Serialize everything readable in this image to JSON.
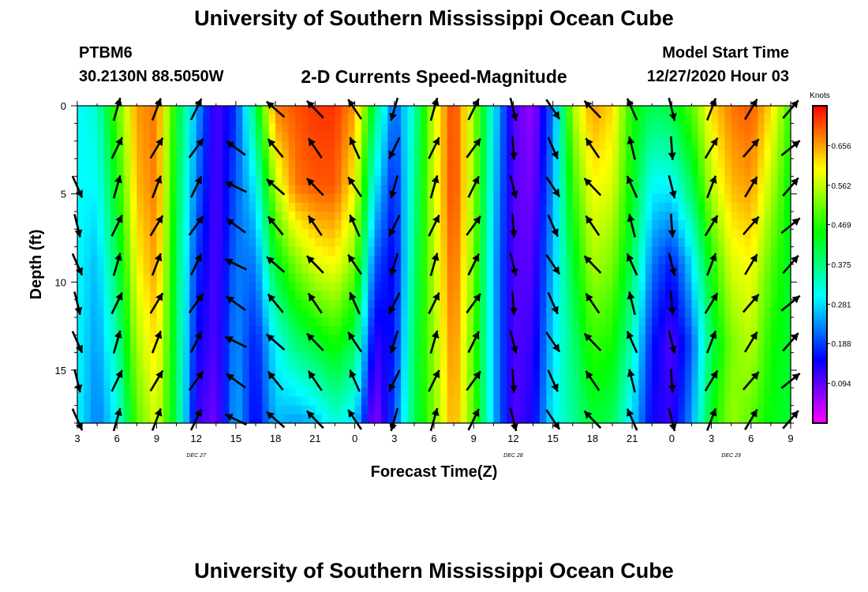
{
  "header": {
    "main_title": "University of Southern Mississippi Ocean Cube",
    "station_id": "PTBM6",
    "station_coords": "30.2130N 88.5050W",
    "chart_title": "2-D Currents Speed-Magnitude",
    "model_start_label": "Model Start Time",
    "model_start_value": "12/27/2020 Hour 03"
  },
  "footer": {
    "title": "University of Southern Mississippi Ocean Cube"
  },
  "chart_data": {
    "type": "heatmap",
    "title": "2-D Currents Speed-Magnitude",
    "xlabel": "Forecast Time(Z)",
    "ylabel": "Depth (ft)",
    "x_tick_labels": [
      "3",
      "6",
      "9",
      "12",
      "15",
      "18",
      "21",
      "0",
      "3",
      "6",
      "9",
      "12",
      "15",
      "18",
      "21",
      "0",
      "3",
      "6",
      "9"
    ],
    "x_range_hours": [
      0,
      54
    ],
    "y_ticks": [
      0,
      5,
      10,
      15
    ],
    "y_range_ft": [
      0,
      18
    ],
    "date_labels": [
      {
        "text": "DEC 27",
        "hour": 9
      },
      {
        "text": "DEC 28",
        "hour": 33
      },
      {
        "text": "DEC 29",
        "hour": 49.5
      }
    ],
    "colorbar": {
      "unit": "Knots",
      "ticks": [
        "0.656",
        "0.562",
        "0.469",
        "0.375",
        "0.281",
        "0.188",
        "0.094"
      ],
      "tick_values": [
        0.656,
        0.562,
        0.469,
        0.375,
        0.281,
        0.188,
        0.094
      ],
      "range": [
        0.0,
        0.75
      ]
    },
    "speed_profiles_by_hour": [
      {
        "hour": 0,
        "speeds": [
          0.3,
          0.3,
          0.3,
          0.3,
          0.3
        ]
      },
      {
        "hour": 1.5,
        "speeds": [
          0.33,
          0.3,
          0.26,
          0.24,
          0.22
        ]
      },
      {
        "hour": 3,
        "speeds": [
          0.5,
          0.45,
          0.4,
          0.35,
          0.3
        ]
      },
      {
        "hour": 4.5,
        "speeds": [
          0.66,
          0.64,
          0.6,
          0.55,
          0.5
        ]
      },
      {
        "hour": 6,
        "speeds": [
          0.68,
          0.68,
          0.66,
          0.62,
          0.58
        ]
      },
      {
        "hour": 7.5,
        "speeds": [
          0.44,
          0.42,
          0.4,
          0.4,
          0.4
        ]
      },
      {
        "hour": 9,
        "speeds": [
          0.25,
          0.22,
          0.18,
          0.15,
          0.12
        ]
      },
      {
        "hour": 10.5,
        "speeds": [
          0.1,
          0.1,
          0.1,
          0.1,
          0.08
        ]
      },
      {
        "hour": 12,
        "speeds": [
          0.18,
          0.2,
          0.22,
          0.24,
          0.26
        ]
      },
      {
        "hour": 13.5,
        "speeds": [
          0.4,
          0.3,
          0.22,
          0.16,
          0.14
        ]
      },
      {
        "hour": 15,
        "speeds": [
          0.68,
          0.56,
          0.43,
          0.3,
          0.26
        ]
      },
      {
        "hour": 16.5,
        "speeds": [
          0.7,
          0.68,
          0.52,
          0.38,
          0.24
        ]
      },
      {
        "hour": 18,
        "speeds": [
          0.72,
          0.7,
          0.58,
          0.42,
          0.26
        ]
      },
      {
        "hour": 19.5,
        "speeds": [
          0.72,
          0.7,
          0.6,
          0.46,
          0.32
        ]
      },
      {
        "hour": 21,
        "speeds": [
          0.66,
          0.6,
          0.52,
          0.4,
          0.28
        ]
      },
      {
        "hour": 22.5,
        "speeds": [
          0.4,
          0.3,
          0.2,
          0.12,
          0.06
        ]
      },
      {
        "hour": 24,
        "speeds": [
          0.2,
          0.16,
          0.14,
          0.16,
          0.2
        ]
      },
      {
        "hour": 25.5,
        "speeds": [
          0.34,
          0.36,
          0.38,
          0.4,
          0.4
        ]
      },
      {
        "hour": 27,
        "speeds": [
          0.58,
          0.58,
          0.56,
          0.54,
          0.52
        ]
      },
      {
        "hour": 28.5,
        "speeds": [
          0.72,
          0.72,
          0.7,
          0.68,
          0.66
        ]
      },
      {
        "hour": 30,
        "speeds": [
          0.54,
          0.54,
          0.52,
          0.5,
          0.5
        ]
      },
      {
        "hour": 31.5,
        "speeds": [
          0.3,
          0.28,
          0.26,
          0.26,
          0.26
        ]
      },
      {
        "hour": 33,
        "speeds": [
          0.1,
          0.1,
          0.1,
          0.1,
          0.1
        ]
      },
      {
        "hour": 34.5,
        "speeds": [
          0.06,
          0.08,
          0.1,
          0.12,
          0.14
        ]
      },
      {
        "hour": 36,
        "speeds": [
          0.22,
          0.24,
          0.26,
          0.28,
          0.3
        ]
      },
      {
        "hour": 37.5,
        "speeds": [
          0.55,
          0.48,
          0.42,
          0.38,
          0.36
        ]
      },
      {
        "hour": 39,
        "speeds": [
          0.66,
          0.6,
          0.55,
          0.48,
          0.42
        ]
      },
      {
        "hour": 40.5,
        "speeds": [
          0.62,
          0.58,
          0.52,
          0.46,
          0.4
        ]
      },
      {
        "hour": 42,
        "speeds": [
          0.46,
          0.44,
          0.4,
          0.34,
          0.28
        ]
      },
      {
        "hour": 43.5,
        "speeds": [
          0.4,
          0.3,
          0.22,
          0.16,
          0.14
        ]
      },
      {
        "hour": 45,
        "speeds": [
          0.42,
          0.3,
          0.16,
          0.1,
          0.12
        ]
      },
      {
        "hour": 46.5,
        "speeds": [
          0.5,
          0.4,
          0.28,
          0.2,
          0.24
        ]
      },
      {
        "hour": 48,
        "speeds": [
          0.62,
          0.56,
          0.46,
          0.4,
          0.44
        ]
      },
      {
        "hour": 49.5,
        "speeds": [
          0.68,
          0.64,
          0.58,
          0.52,
          0.54
        ]
      },
      {
        "hour": 51,
        "speeds": [
          0.7,
          0.66,
          0.6,
          0.56,
          0.5
        ]
      },
      {
        "hour": 52.5,
        "speeds": [
          0.62,
          0.56,
          0.5,
          0.46,
          0.44
        ]
      },
      {
        "hour": 54,
        "speeds": [
          0.48,
          0.44,
          0.42,
          0.42,
          0.42
        ]
      }
    ],
    "profile_depths_ft": [
      0,
      4.5,
      9,
      13.5,
      18
    ],
    "arrow_columns": [
      {
        "hour": 0,
        "dir_deg": 160,
        "rows": [
          0,
          0,
          1,
          1,
          1,
          1,
          1,
          1,
          1
        ]
      },
      {
        "hour": 3,
        "dir_deg": 20,
        "rows": [
          1,
          1,
          1,
          1,
          1,
          1,
          1,
          1,
          1
        ]
      },
      {
        "hour": 6,
        "dir_deg": 25,
        "rows": [
          1,
          1,
          1,
          1,
          1,
          1,
          1,
          1,
          1
        ]
      },
      {
        "hour": 9,
        "dir_deg": 30,
        "rows": [
          1,
          1,
          1,
          1,
          1,
          1,
          1,
          1,
          1
        ]
      },
      {
        "hour": 12,
        "dir_deg": 300,
        "rows": [
          0,
          1,
          1,
          1,
          1,
          1,
          1,
          1,
          1
        ]
      },
      {
        "hour": 15,
        "dir_deg": 315,
        "rows": [
          1,
          1,
          1,
          1,
          1,
          1,
          1,
          1,
          1
        ]
      },
      {
        "hour": 18,
        "dir_deg": 320,
        "rows": [
          1,
          1,
          1,
          1,
          1,
          1,
          1,
          1,
          1
        ]
      },
      {
        "hour": 21,
        "dir_deg": 330,
        "rows": [
          1,
          1,
          1,
          1,
          1,
          1,
          1,
          1,
          1
        ]
      },
      {
        "hour": 24,
        "dir_deg": 200,
        "rows": [
          1,
          1,
          1,
          1,
          1,
          1,
          1,
          1,
          1
        ]
      },
      {
        "hour": 27,
        "dir_deg": 20,
        "rows": [
          1,
          1,
          1,
          1,
          1,
          1,
          1,
          1,
          1
        ]
      },
      {
        "hour": 30,
        "dir_deg": 30,
        "rows": [
          1,
          1,
          1,
          1,
          1,
          1,
          1,
          1,
          1
        ]
      },
      {
        "hour": 33,
        "dir_deg": 170,
        "rows": [
          1,
          1,
          1,
          1,
          1,
          1,
          1,
          1,
          1
        ]
      },
      {
        "hour": 36,
        "dir_deg": 150,
        "rows": [
          1,
          1,
          1,
          1,
          1,
          1,
          1,
          1,
          1
        ]
      },
      {
        "hour": 39,
        "dir_deg": 320,
        "rows": [
          1,
          1,
          1,
          1,
          1,
          1,
          1,
          1,
          1
        ]
      },
      {
        "hour": 42,
        "dir_deg": 340,
        "rows": [
          1,
          1,
          1,
          1,
          1,
          1,
          1,
          1,
          1
        ]
      },
      {
        "hour": 45,
        "dir_deg": 170,
        "rows": [
          1,
          1,
          1,
          1,
          1,
          1,
          1,
          1,
          1
        ]
      },
      {
        "hour": 48,
        "dir_deg": 25,
        "rows": [
          1,
          1,
          1,
          1,
          1,
          1,
          1,
          1,
          1
        ]
      },
      {
        "hour": 51,
        "dir_deg": 35,
        "rows": [
          1,
          1,
          1,
          1,
          1,
          1,
          1,
          1,
          1
        ]
      },
      {
        "hour": 54,
        "dir_deg": 45,
        "rows": [
          1,
          1,
          1,
          1,
          1,
          1,
          1,
          1,
          1
        ]
      }
    ]
  }
}
